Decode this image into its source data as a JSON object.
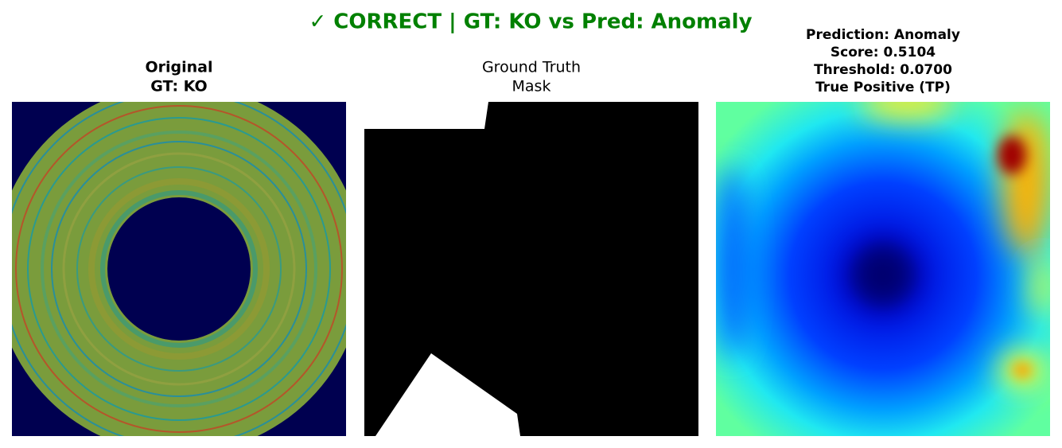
{
  "title": "✓ CORRECT | GT: KO vs Pred: Anomaly",
  "panels": [
    {
      "title_lines": [
        "Original",
        "GT: KO"
      ]
    },
    {
      "title_lines": [
        "Ground Truth",
        "Mask"
      ]
    },
    {
      "title_lines": [
        "Prediction: Anomaly",
        "Score: 0.5104",
        "Threshold: 0.0700",
        "True Positive (TP)"
      ]
    }
  ]
}
